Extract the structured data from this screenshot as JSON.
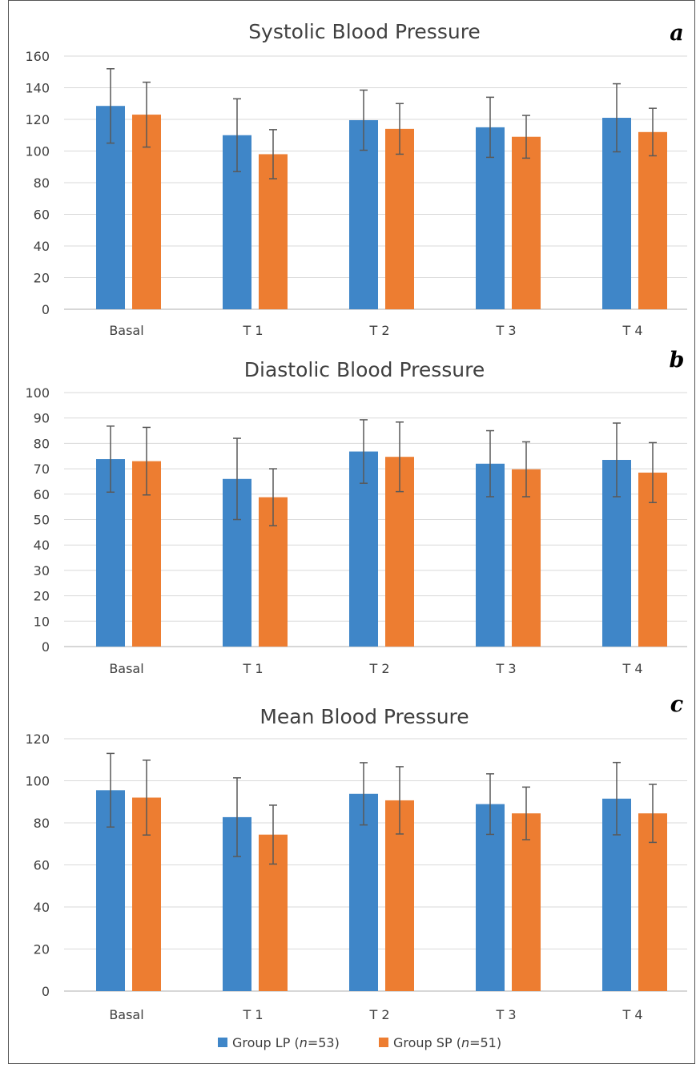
{
  "colors": {
    "group_lp": "#3f86c8",
    "group_sp": "#ed7d31",
    "grid": "#d9d9d9",
    "axis": "#bfbfbf",
    "error_bar": "#595959"
  },
  "legend": {
    "position": "bottom",
    "items": [
      {
        "prefix": "Group LP (",
        "italic": "n",
        "suffix": "=53)"
      },
      {
        "prefix": "Group SP (",
        "italic": "n",
        "suffix": "=51)"
      }
    ]
  },
  "chart_data": [
    {
      "type": "bar",
      "letter": "a",
      "title": "Systolic Blood Pressure",
      "categories": [
        "Basal",
        "T 1",
        "T 2",
        "T 3",
        "T 4"
      ],
      "ylim": [
        0,
        160
      ],
      "yticks": [
        0,
        20,
        40,
        60,
        80,
        100,
        120,
        140,
        160
      ],
      "grid": true,
      "series": [
        {
          "name": "Group LP (n=53)",
          "values": [
            128.5,
            110,
            119.5,
            115,
            121
          ],
          "errors": [
            23.5,
            23,
            19,
            19,
            21.5
          ]
        },
        {
          "name": "Group SP (n=51)",
          "values": [
            123,
            98,
            114,
            109,
            112
          ],
          "errors": [
            20.5,
            15.5,
            16,
            13.5,
            15
          ]
        }
      ]
    },
    {
      "type": "bar",
      "letter": "b",
      "title": "Diastolic Blood Pressure",
      "categories": [
        "Basal",
        "T 1",
        "T 2",
        "T 3",
        "T 4"
      ],
      "ylim": [
        0,
        100
      ],
      "yticks": [
        0,
        10,
        20,
        30,
        40,
        50,
        60,
        70,
        80,
        90,
        100
      ],
      "grid": true,
      "series": [
        {
          "name": "Group LP (n=53)",
          "values": [
            73.8,
            66,
            76.8,
            72,
            73.5
          ],
          "errors": [
            13,
            16,
            12.5,
            13,
            14.5
          ]
        },
        {
          "name": "Group SP (n=51)",
          "values": [
            73,
            58.8,
            74.7,
            69.8,
            68.5
          ],
          "errors": [
            13.3,
            11.2,
            13.7,
            10.8,
            11.8
          ]
        }
      ]
    },
    {
      "type": "bar",
      "letter": "c",
      "title": "Mean Blood Pressure",
      "categories": [
        "Basal",
        "T 1",
        "T 2",
        "T 3",
        "T 4"
      ],
      "ylim": [
        0,
        120
      ],
      "yticks": [
        0,
        20,
        40,
        60,
        80,
        100,
        120
      ],
      "grid": true,
      "series": [
        {
          "name": "Group LP (n=53)",
          "values": [
            95.5,
            82.7,
            93.8,
            88.9,
            91.5
          ],
          "errors": [
            17.5,
            18.7,
            14.8,
            14.4,
            17.2
          ]
        },
        {
          "name": "Group SP (n=51)",
          "values": [
            92,
            74.4,
            90.7,
            84.5,
            84.5
          ],
          "errors": [
            17.8,
            14,
            16,
            12.5,
            13.8
          ]
        }
      ]
    }
  ]
}
